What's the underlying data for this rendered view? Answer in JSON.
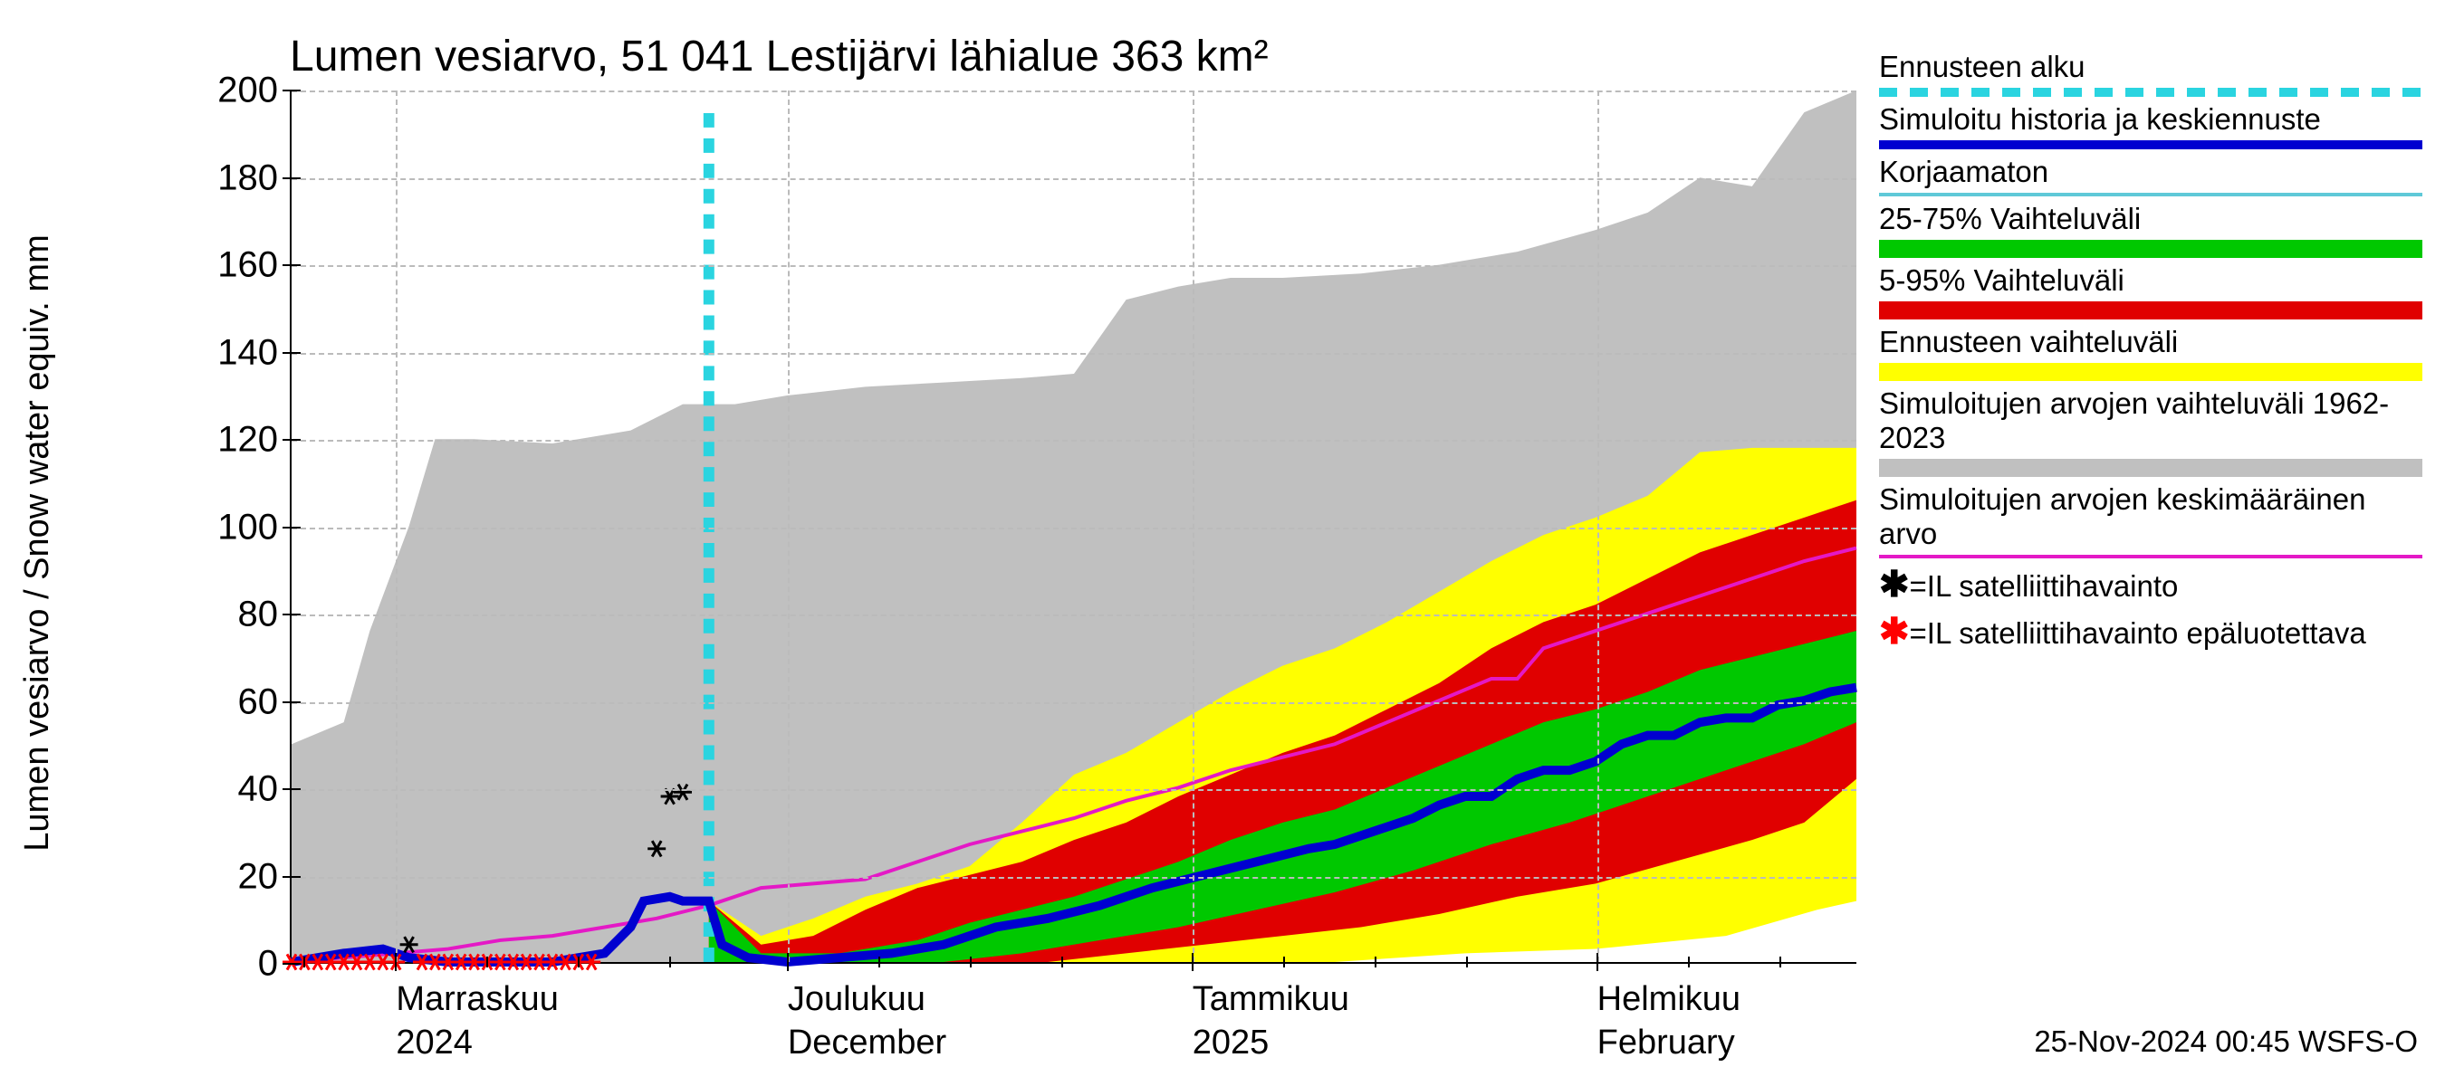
{
  "chart": {
    "type": "line-area-forecast",
    "title": "Lumen vesiarvo, 51 041 Lestijärvi lähialue 363 km²",
    "y_axis_label": "Lumen vesiarvo / Snow water equiv.   mm",
    "timestamp": "25-Nov-2024 00:45 WSFS-O",
    "background_color": "#ffffff",
    "grid_color": "#bbbbbb",
    "title_fontsize": 48,
    "label_fontsize": 40,
    "tick_fontsize": 40,
    "xlim_days": [
      0,
      120
    ],
    "ylim": [
      0,
      200
    ],
    "ytick_step": 20,
    "y_ticks": [
      0,
      20,
      40,
      60,
      80,
      100,
      120,
      140,
      160,
      180,
      200
    ],
    "x_major_ticks": [
      {
        "day": 8,
        "label_line1": "Marraskuu",
        "label_line2": "2024"
      },
      {
        "day": 38,
        "label_line1": "Joulukuu",
        "label_line2": "December"
      },
      {
        "day": 69,
        "label_line1": "Tammikuu",
        "label_line2": "2025"
      },
      {
        "day": 100,
        "label_line1": "Helmikuu",
        "label_line2": "February"
      }
    ],
    "x_minor_tick_days": [
      1,
      15,
      22,
      29,
      45,
      52,
      59,
      76,
      83,
      90,
      107,
      114
    ],
    "forecast_start_day": 32,
    "colors": {
      "forecast_line": "#2ad4e0",
      "history_line": "#0000d0",
      "uncorrected_line": "#5fc9d8",
      "mean_historical_line": "#e419c6",
      "band_25_75": "#00c800",
      "band_5_95": "#e00000",
      "band_forecast_range": "#ffff00",
      "band_historical": "#c0c0c0",
      "sat_obs": "#000000",
      "sat_obs_unreliable": "#ff0000"
    },
    "historical_band_upper": [
      [
        0,
        50
      ],
      [
        4,
        55
      ],
      [
        6,
        76
      ],
      [
        9,
        100
      ],
      [
        11,
        120
      ],
      [
        14,
        120
      ],
      [
        20,
        119
      ],
      [
        26,
        122
      ],
      [
        30,
        128
      ],
      [
        34,
        128
      ],
      [
        38,
        130
      ],
      [
        44,
        132
      ],
      [
        50,
        133
      ],
      [
        56,
        134
      ],
      [
        60,
        135
      ],
      [
        64,
        152
      ],
      [
        68,
        155
      ],
      [
        72,
        157
      ],
      [
        76,
        157
      ],
      [
        82,
        158
      ],
      [
        88,
        160
      ],
      [
        94,
        163
      ],
      [
        100,
        168
      ],
      [
        104,
        172
      ],
      [
        108,
        180
      ],
      [
        112,
        178
      ],
      [
        116,
        195
      ],
      [
        120,
        200
      ]
    ],
    "historical_band_lower": [
      [
        0,
        0
      ],
      [
        20,
        0
      ],
      [
        40,
        0
      ],
      [
        55,
        0
      ],
      [
        65,
        0
      ],
      [
        75,
        1
      ],
      [
        85,
        2
      ],
      [
        95,
        4
      ],
      [
        100,
        5
      ],
      [
        105,
        7
      ],
      [
        110,
        9
      ],
      [
        115,
        16
      ],
      [
        120,
        18
      ]
    ],
    "forecast_range_upper": [
      [
        32,
        14
      ],
      [
        36,
        6
      ],
      [
        40,
        10
      ],
      [
        44,
        15
      ],
      [
        48,
        18
      ],
      [
        52,
        22
      ],
      [
        56,
        32
      ],
      [
        60,
        43
      ],
      [
        64,
        48
      ],
      [
        68,
        55
      ],
      [
        72,
        62
      ],
      [
        76,
        68
      ],
      [
        80,
        72
      ],
      [
        84,
        78
      ],
      [
        88,
        85
      ],
      [
        92,
        92
      ],
      [
        96,
        98
      ],
      [
        100,
        102
      ],
      [
        104,
        107
      ],
      [
        108,
        117
      ],
      [
        112,
        118
      ],
      [
        116,
        118
      ],
      [
        120,
        118
      ]
    ],
    "forecast_range_lower": [
      [
        32,
        0
      ],
      [
        48,
        0
      ],
      [
        60,
        0
      ],
      [
        70,
        0
      ],
      [
        80,
        0
      ],
      [
        90,
        2
      ],
      [
        100,
        3
      ],
      [
        110,
        6
      ],
      [
        117,
        12
      ],
      [
        120,
        14
      ]
    ],
    "band_5_95_upper": [
      [
        32,
        14
      ],
      [
        36,
        4
      ],
      [
        40,
        6
      ],
      [
        44,
        12
      ],
      [
        48,
        17
      ],
      [
        52,
        20
      ],
      [
        56,
        23
      ],
      [
        60,
        28
      ],
      [
        64,
        32
      ],
      [
        68,
        38
      ],
      [
        72,
        43
      ],
      [
        76,
        48
      ],
      [
        80,
        52
      ],
      [
        84,
        58
      ],
      [
        88,
        64
      ],
      [
        92,
        72
      ],
      [
        96,
        78
      ],
      [
        100,
        82
      ],
      [
        104,
        88
      ],
      [
        108,
        94
      ],
      [
        112,
        98
      ],
      [
        116,
        102
      ],
      [
        120,
        106
      ]
    ],
    "band_5_95_lower": [
      [
        32,
        0
      ],
      [
        44,
        0
      ],
      [
        52,
        0
      ],
      [
        58,
        0
      ],
      [
        64,
        2
      ],
      [
        70,
        4
      ],
      [
        76,
        6
      ],
      [
        82,
        8
      ],
      [
        88,
        11
      ],
      [
        94,
        15
      ],
      [
        100,
        18
      ],
      [
        106,
        23
      ],
      [
        112,
        28
      ],
      [
        116,
        32
      ],
      [
        120,
        42
      ]
    ],
    "band_25_75_upper": [
      [
        32,
        14
      ],
      [
        36,
        2
      ],
      [
        42,
        2
      ],
      [
        48,
        5
      ],
      [
        52,
        9
      ],
      [
        56,
        12
      ],
      [
        60,
        15
      ],
      [
        64,
        19
      ],
      [
        68,
        23
      ],
      [
        72,
        28
      ],
      [
        76,
        32
      ],
      [
        80,
        35
      ],
      [
        84,
        40
      ],
      [
        88,
        45
      ],
      [
        92,
        50
      ],
      [
        96,
        55
      ],
      [
        100,
        58
      ],
      [
        104,
        62
      ],
      [
        108,
        67
      ],
      [
        112,
        70
      ],
      [
        116,
        73
      ],
      [
        120,
        76
      ]
    ],
    "band_25_75_lower": [
      [
        32,
        0
      ],
      [
        42,
        0
      ],
      [
        50,
        0
      ],
      [
        56,
        2
      ],
      [
        62,
        5
      ],
      [
        68,
        8
      ],
      [
        74,
        12
      ],
      [
        80,
        16
      ],
      [
        86,
        21
      ],
      [
        92,
        27
      ],
      [
        98,
        32
      ],
      [
        104,
        38
      ],
      [
        110,
        44
      ],
      [
        116,
        50
      ],
      [
        120,
        55
      ]
    ],
    "history_blue_line": [
      [
        0,
        0
      ],
      [
        4,
        2
      ],
      [
        7,
        3
      ],
      [
        9,
        1
      ],
      [
        12,
        0
      ],
      [
        16,
        0
      ],
      [
        20,
        0
      ],
      [
        24,
        2
      ],
      [
        26,
        8
      ],
      [
        27,
        14
      ],
      [
        29,
        15
      ],
      [
        30,
        14
      ],
      [
        31,
        14
      ],
      [
        32,
        14
      ],
      [
        33,
        4
      ],
      [
        35,
        1
      ],
      [
        38,
        0
      ],
      [
        42,
        1
      ],
      [
        46,
        2
      ],
      [
        50,
        4
      ],
      [
        54,
        8
      ],
      [
        58,
        10
      ],
      [
        62,
        13
      ],
      [
        66,
        17
      ],
      [
        70,
        20
      ],
      [
        74,
        23
      ],
      [
        78,
        26
      ],
      [
        80,
        27
      ],
      [
        82,
        29
      ],
      [
        84,
        31
      ],
      [
        86,
        33
      ],
      [
        88,
        36
      ],
      [
        90,
        38
      ],
      [
        92,
        38
      ],
      [
        94,
        42
      ],
      [
        96,
        44
      ],
      [
        98,
        44
      ],
      [
        100,
        46
      ],
      [
        102,
        50
      ],
      [
        104,
        52
      ],
      [
        106,
        52
      ],
      [
        108,
        55
      ],
      [
        110,
        56
      ],
      [
        112,
        56
      ],
      [
        114,
        59
      ],
      [
        116,
        60
      ],
      [
        118,
        62
      ],
      [
        120,
        63
      ]
    ],
    "mean_historical_line": [
      [
        0,
        0
      ],
      [
        4,
        1
      ],
      [
        8,
        2
      ],
      [
        12,
        3
      ],
      [
        16,
        5
      ],
      [
        20,
        6
      ],
      [
        24,
        8
      ],
      [
        28,
        10
      ],
      [
        32,
        13
      ],
      [
        36,
        17
      ],
      [
        40,
        18
      ],
      [
        44,
        19
      ],
      [
        48,
        23
      ],
      [
        52,
        27
      ],
      [
        56,
        30
      ],
      [
        60,
        33
      ],
      [
        64,
        37
      ],
      [
        68,
        40
      ],
      [
        72,
        44
      ],
      [
        76,
        47
      ],
      [
        80,
        50
      ],
      [
        84,
        55
      ],
      [
        88,
        60
      ],
      [
        92,
        65
      ],
      [
        94,
        65
      ],
      [
        96,
        72
      ],
      [
        100,
        76
      ],
      [
        104,
        80
      ],
      [
        108,
        84
      ],
      [
        112,
        88
      ],
      [
        116,
        92
      ],
      [
        120,
        95
      ]
    ],
    "sat_obs_points": [
      {
        "day": 9,
        "value": 4
      },
      {
        "day": 28,
        "value": 26
      },
      {
        "day": 29,
        "value": 38
      },
      {
        "day": 30,
        "value": 39
      }
    ],
    "sat_obs_unreliable_points": [
      {
        "day": 0,
        "value": 0
      },
      {
        "day": 1,
        "value": 0
      },
      {
        "day": 2,
        "value": 0
      },
      {
        "day": 3,
        "value": 0
      },
      {
        "day": 4,
        "value": 0
      },
      {
        "day": 5,
        "value": 0
      },
      {
        "day": 6,
        "value": 0
      },
      {
        "day": 7,
        "value": 0
      },
      {
        "day": 8,
        "value": 0
      },
      {
        "day": 10,
        "value": 0
      },
      {
        "day": 11,
        "value": 0
      },
      {
        "day": 12,
        "value": 0
      },
      {
        "day": 13,
        "value": 0
      },
      {
        "day": 14,
        "value": 0
      },
      {
        "day": 15,
        "value": 0
      },
      {
        "day": 16,
        "value": 0
      },
      {
        "day": 17,
        "value": 0
      },
      {
        "day": 18,
        "value": 0
      },
      {
        "day": 19,
        "value": 0
      },
      {
        "day": 20,
        "value": 0
      },
      {
        "day": 21,
        "value": 0
      },
      {
        "day": 22,
        "value": 0
      },
      {
        "day": 23,
        "value": 0
      }
    ]
  },
  "legend": {
    "items": [
      {
        "label": "Ennusteen alku",
        "kind": "dashed-line",
        "color": "#2ad4e0"
      },
      {
        "label": "Simuloitu historia ja keskiennuste",
        "kind": "thick-line",
        "color": "#0000d0"
      },
      {
        "label": "Korjaamaton",
        "kind": "thin-line",
        "color": "#5fc9d8"
      },
      {
        "label": "25-75% Vaihteluväli",
        "kind": "band",
        "color": "#00c800"
      },
      {
        "label": "5-95% Vaihteluväli",
        "kind": "band",
        "color": "#e00000"
      },
      {
        "label": "Ennusteen vaihteluväli",
        "kind": "band",
        "color": "#ffff00"
      },
      {
        "label": "Simuloitujen arvojen vaihteluväli 1962-2023",
        "kind": "band",
        "color": "#c0c0c0"
      },
      {
        "label": "Simuloitujen arvojen keskimääräinen arvo",
        "kind": "thin-line",
        "color": "#e419c6"
      },
      {
        "label": "=IL satelliittihavainto",
        "kind": "marker",
        "marker": "✱",
        "color": "#000000"
      },
      {
        "label": "=IL satelliittihavainto epäluotettava",
        "kind": "marker",
        "marker": "✱",
        "color": "#ff0000"
      }
    ]
  }
}
